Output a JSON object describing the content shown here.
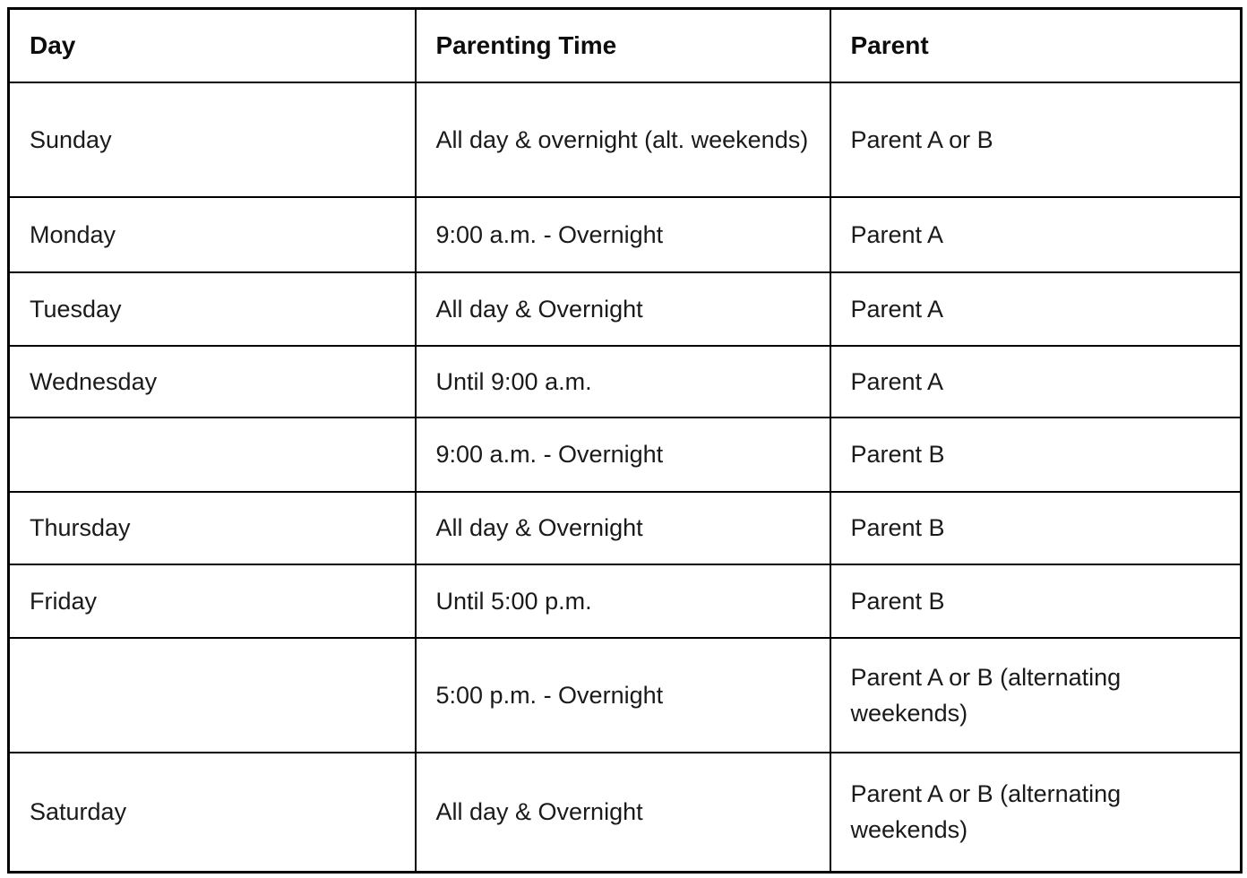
{
  "table": {
    "text_color": "#1a1a1a",
    "border_color": "#000000",
    "background_color": "#ffffff",
    "columns": [
      {
        "label": "Day"
      },
      {
        "label": "Parenting Time"
      },
      {
        "label": "Parent"
      }
    ],
    "rows": [
      {
        "day": "Sunday",
        "time": "All day & overnight (alt. weekends)",
        "parent": "Parent A or B"
      },
      {
        "day": "Monday",
        "time": "9:00 a.m. - Overnight",
        "parent": "Parent A"
      },
      {
        "day": "Tuesday",
        "time": "All day & Overnight",
        "parent": "Parent A"
      },
      {
        "day": "Wednesday",
        "time": "Until 9:00 a.m.",
        "parent": "Parent A"
      },
      {
        "day": "",
        "time": "9:00 a.m. - Overnight",
        "parent": "Parent B"
      },
      {
        "day": "Thursday",
        "time": "All day & Overnight",
        "parent": "Parent B"
      },
      {
        "day": "Friday",
        "time": "Until 5:00 p.m.",
        "parent": "Parent B"
      },
      {
        "day": "",
        "time": "5:00 p.m. - Overnight",
        "parent": "Parent A or B (alternating weekends)"
      },
      {
        "day": "Saturday",
        "time": "All day & Overnight",
        "parent": "Parent A or B (alternating weekends)"
      }
    ]
  }
}
